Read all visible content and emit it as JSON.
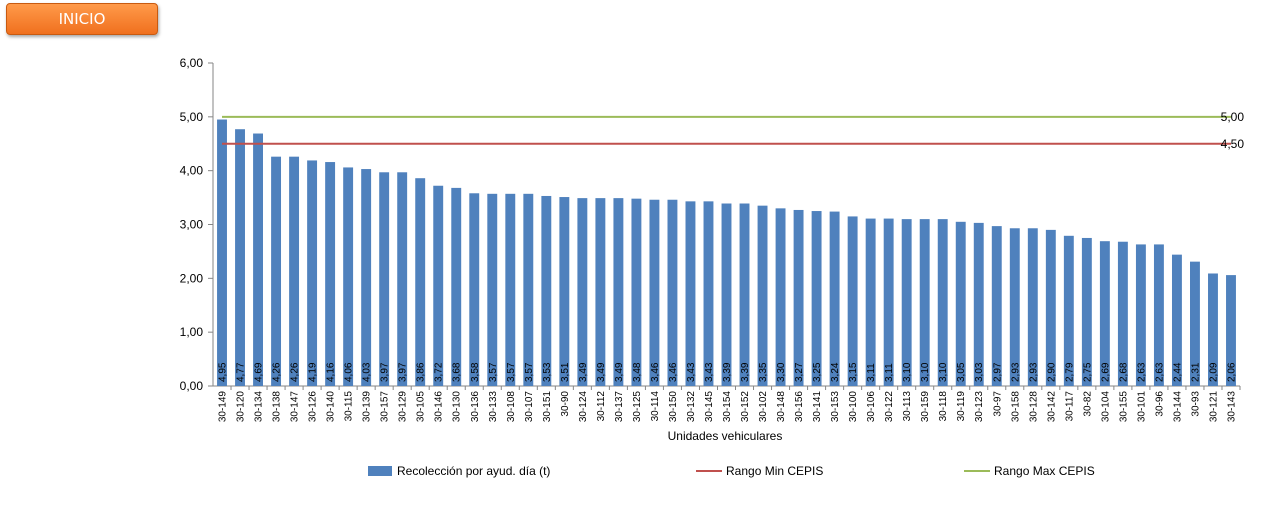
{
  "button": {
    "label": "INICIO"
  },
  "chart_data": {
    "type": "bar",
    "title": "",
    "xlabel": "Unidades vehiculares",
    "ylabel": "",
    "ylim": [
      0,
      6
    ],
    "yticks": [
      "0,00",
      "1,00",
      "2,00",
      "3,00",
      "4,00",
      "5,00",
      "6,00"
    ],
    "grid": false,
    "legend_position": "bottom",
    "categories": [
      "30-149",
      "30-120",
      "30-134",
      "30-138",
      "30-147",
      "30-126",
      "30-140",
      "30-115",
      "30-139",
      "30-157",
      "30-129",
      "30-105",
      "30-146",
      "30-130",
      "30-136",
      "30-133",
      "30-108",
      "30-107",
      "30-151",
      "30-90",
      "30-124",
      "30-112",
      "30-137",
      "30-125",
      "30-114",
      "30-150",
      "30-132",
      "30-145",
      "30-154",
      "30-152",
      "30-102",
      "30-148",
      "30-156",
      "30-141",
      "30-153",
      "30-100",
      "30-106",
      "30-122",
      "30-113",
      "30-159",
      "30-118",
      "30-119",
      "30-123",
      "30-97",
      "30-158",
      "30-128",
      "30-142",
      "30-117",
      "30-82",
      "30-104",
      "30-155",
      "30-101",
      "30-96",
      "30-144",
      "30-93",
      "30-121",
      "30-143"
    ],
    "series": [
      {
        "name": "Recolección por ayud. día (t)",
        "color": "#4f81bd",
        "values": [
          4.95,
          4.77,
          4.69,
          4.26,
          4.26,
          4.19,
          4.16,
          4.06,
          4.03,
          3.97,
          3.97,
          3.86,
          3.72,
          3.68,
          3.58,
          3.57,
          3.57,
          3.57,
          3.53,
          3.51,
          3.49,
          3.49,
          3.49,
          3.48,
          3.46,
          3.46,
          3.43,
          3.43,
          3.39,
          3.39,
          3.35,
          3.3,
          3.27,
          3.25,
          3.24,
          3.15,
          3.11,
          3.11,
          3.1,
          3.1,
          3.1,
          3.05,
          3.03,
          2.97,
          2.93,
          2.93,
          2.9,
          2.79,
          2.75,
          2.69,
          2.68,
          2.63,
          2.63,
          2.44,
          2.31,
          2.09,
          2.06
        ],
        "labels": [
          "4,95",
          "4,77",
          "4,69",
          "4,26",
          "4,26",
          "4,19",
          "4,16",
          "4,06",
          "4,03",
          "3,97",
          "3,97",
          "3,86",
          "3,72",
          "3,68",
          "3,58",
          "3,57",
          "3,57",
          "3,57",
          "3,53",
          "3,51",
          "3,49",
          "3,49",
          "3,49",
          "3,48",
          "3,46",
          "3,46",
          "3,43",
          "3,43",
          "3,39",
          "3,39",
          "3,35",
          "3,30",
          "3,27",
          "3,25",
          "3,24",
          "3,15",
          "3,11",
          "3,11",
          "3,10",
          "3,10",
          "3,10",
          "3,05",
          "3,03",
          "2,97",
          "2,93",
          "2,93",
          "2,90",
          "2,79",
          "2,75",
          "2,69",
          "2,68",
          "2,63",
          "2,63",
          "2,44",
          "2,31",
          "2,09",
          "2,06"
        ]
      }
    ],
    "reference_lines": [
      {
        "name": "Rango Min CEPIS",
        "value": 4.5,
        "label": "4,50",
        "color": "#c0504d"
      },
      {
        "name": "Rango Max CEPIS",
        "value": 5.0,
        "label": "5,00",
        "color": "#9bbb59"
      }
    ]
  }
}
